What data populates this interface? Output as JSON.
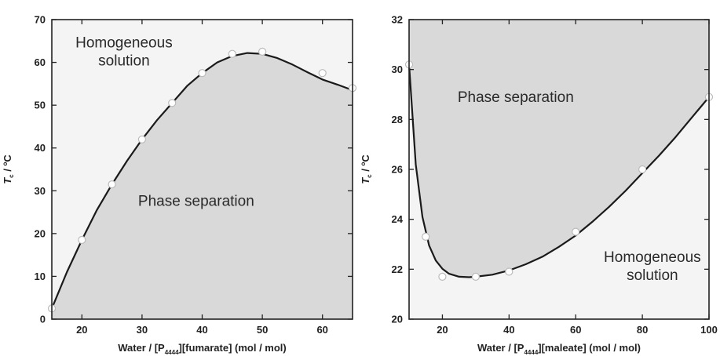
{
  "colors": {
    "plot_background": "#f4f4f4",
    "shaded_region": "#d9d9d9",
    "curve": "#1a1a1a",
    "marker_fill": "#ffffff",
    "marker_stroke": "#bbbbbb",
    "frame": "#222222",
    "text": "#222222"
  },
  "chart_data": [
    {
      "type": "scatter",
      "title": "",
      "xlabel": {
        "main": "Water / [P",
        "subscript": "4444",
        "rest": "][fumarate] (mol / mol)"
      },
      "ylabel": {
        "main": "T",
        "subscript": "c",
        "rest": " / ",
        "superscript": "o",
        "unit": "C"
      },
      "xlim": [
        15,
        65
      ],
      "ylim": [
        0,
        70
      ],
      "xticks": [
        20,
        30,
        40,
        50,
        60
      ],
      "yticks": [
        0,
        10,
        20,
        30,
        40,
        50,
        60,
        70
      ],
      "grid": false,
      "shaded": "below-curve",
      "points": {
        "x": [
          15,
          20,
          25,
          30,
          35,
          40,
          45,
          50,
          60,
          65
        ],
        "y": [
          2.5,
          18.5,
          31.5,
          42,
          50.5,
          57.5,
          62,
          62.5,
          57.5,
          54
        ]
      },
      "curve": {
        "x": [
          15,
          17.5,
          20,
          22.5,
          25,
          27.5,
          30,
          32.5,
          35,
          37.5,
          40,
          42.5,
          45,
          47.5,
          50,
          52.5,
          55,
          57.5,
          60,
          62.5,
          65
        ],
        "y": [
          2.5,
          11,
          18.5,
          25.5,
          31.5,
          37,
          42,
          46.5,
          50.5,
          54.5,
          57.5,
          60,
          61.5,
          62.2,
          62,
          61,
          59.5,
          57.7,
          56,
          54.8,
          53.5
        ]
      },
      "annotations": [
        {
          "lines": [
            "Homogeneous",
            "solution"
          ],
          "x": 27,
          "y": 63.5
        },
        {
          "lines": [
            "Phase separation"
          ],
          "x": 39,
          "y": 26.5
        }
      ]
    },
    {
      "type": "scatter",
      "title": "",
      "xlabel": {
        "main": "Water / [P",
        "subscript": "4444",
        "rest": "][maleate] (mol / mol)"
      },
      "ylabel": {
        "main": "T",
        "subscript": "c",
        "rest": " / ",
        "superscript": "o",
        "unit": "C"
      },
      "xlim": [
        10,
        100
      ],
      "ylim": [
        20,
        32
      ],
      "xticks": [
        20,
        40,
        60,
        80,
        100
      ],
      "yticks": [
        20,
        22,
        24,
        26,
        28,
        30,
        32
      ],
      "grid": false,
      "shaded": "above-curve",
      "points": {
        "x": [
          10,
          15,
          20,
          30,
          40,
          60,
          80,
          100
        ],
        "y": [
          30.2,
          23.3,
          21.7,
          21.7,
          21.9,
          23.5,
          26.0,
          28.9
        ]
      },
      "curve": {
        "x": [
          10,
          12,
          14,
          16,
          18,
          20,
          22,
          25,
          28,
          30,
          35,
          40,
          45,
          50,
          55,
          60,
          65,
          70,
          75,
          80,
          85,
          90,
          95,
          100
        ],
        "y": [
          30.2,
          26.2,
          24.1,
          22.95,
          22.35,
          22.02,
          21.82,
          21.7,
          21.68,
          21.7,
          21.78,
          21.95,
          22.2,
          22.5,
          22.9,
          23.35,
          23.9,
          24.5,
          25.15,
          25.85,
          26.55,
          27.3,
          28.1,
          28.9
        ]
      },
      "annotations": [
        {
          "lines": [
            "Phase separation"
          ],
          "x": 42,
          "y": 28.7
        },
        {
          "lines": [
            "Homogeneous",
            "solution"
          ],
          "x": 83,
          "y": 22.3
        }
      ]
    }
  ]
}
